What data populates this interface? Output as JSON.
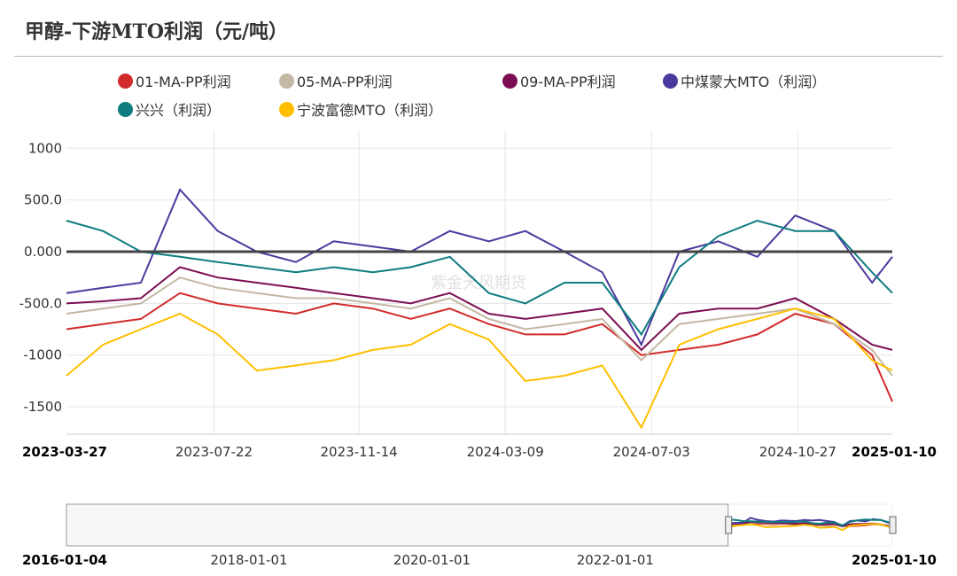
{
  "title": "甲醇-下游MTO利润（元/吨）",
  "watermark": "紫金天风期货",
  "chart_data": {
    "type": "line",
    "title": "甲醇-下游MTO利润（元/吨）",
    "ylim": [
      -1750,
      1150
    ],
    "yticks": [
      1000,
      500,
      0,
      -500,
      -1000,
      -1500
    ],
    "ytick_labels": [
      "1000",
      "500.0",
      "0.000",
      "-500.0",
      "-1000",
      "-1500"
    ],
    "xlim": [
      "2023-03-27",
      "2025-01-10"
    ],
    "xticks": [
      "2023-03-27",
      "2023-07-22",
      "2023-11-14",
      "2024-03-09",
      "2024-07-03",
      "2024-10-27",
      "2025-01-10"
    ],
    "navigator": {
      "range": [
        "2016-01-04",
        "2025-01-10"
      ],
      "ticks": [
        "2016-01-04",
        "2018-01-01",
        "2020-01-01",
        "2022-01-01",
        "2025-01-10"
      ]
    },
    "grid": true,
    "legend_position": "top",
    "x": [
      "2023-03-27",
      "2023-04-25",
      "2023-05-25",
      "2023-06-25",
      "2023-07-25",
      "2023-08-25",
      "2023-09-25",
      "2023-10-25",
      "2023-11-25",
      "2023-12-25",
      "2024-01-25",
      "2024-02-25",
      "2024-03-25",
      "2024-04-25",
      "2024-05-25",
      "2024-06-25",
      "2024-07-25",
      "2024-08-25",
      "2024-09-25",
      "2024-10-25",
      "2024-11-25",
      "2024-12-25",
      "2025-01-10"
    ],
    "series": [
      {
        "name": "01-MA-PP利润",
        "color": "#d22b2b",
        "values": [
          -750,
          -700,
          -650,
          -400,
          -500,
          -550,
          -600,
          -500,
          -550,
          -650,
          -550,
          -700,
          -800,
          -800,
          -700,
          -1000,
          -950,
          -900,
          -800,
          -600,
          -700,
          -1000,
          -1450
        ]
      },
      {
        "name": "05-MA-PP利润",
        "color": "#c4b8a4",
        "values": [
          -600,
          -550,
          -500,
          -250,
          -350,
          -400,
          -450,
          -450,
          -500,
          -550,
          -450,
          -650,
          -750,
          -700,
          -650,
          -1050,
          -700,
          -650,
          -600,
          -550,
          -700,
          -950,
          -1200
        ]
      },
      {
        "name": "09-MA-PP利润",
        "color": "#7b0e52",
        "values": [
          -500,
          -480,
          -450,
          -150,
          -250,
          -300,
          -350,
          -400,
          -450,
          -500,
          -400,
          -600,
          -650,
          -600,
          -550,
          -950,
          -600,
          -550,
          -550,
          -450,
          -650,
          -900,
          -950
        ]
      },
      {
        "name": "中煤蒙大MTO（利润）",
        "color": "#4b3a9e",
        "values": [
          -400,
          -350,
          -300,
          600,
          200,
          0,
          -100,
          100,
          50,
          0,
          200,
          100,
          200,
          0,
          -200,
          -900,
          0,
          100,
          -50,
          350,
          200,
          -300,
          -50
        ]
      },
      {
        "name": "兴兴（利润）",
        "color": "#0e7c80",
        "values": [
          300,
          200,
          0,
          -50,
          -100,
          -150,
          -200,
          -150,
          -200,
          -150,
          -50,
          -400,
          -500,
          -300,
          -300,
          -800,
          -150,
          150,
          300,
          200,
          200,
          -200,
          -400
        ]
      },
      {
        "name": "宁波富德MTO（利润）",
        "color": "#ffbf00",
        "values": [
          -1200,
          -900,
          -750,
          -600,
          -800,
          -1150,
          -1100,
          -1050,
          -950,
          -900,
          -700,
          -850,
          -1250,
          -1200,
          -1100,
          -1700,
          -900,
          -750,
          -650,
          -550,
          -650,
          -1050,
          -1150
        ]
      }
    ]
  }
}
